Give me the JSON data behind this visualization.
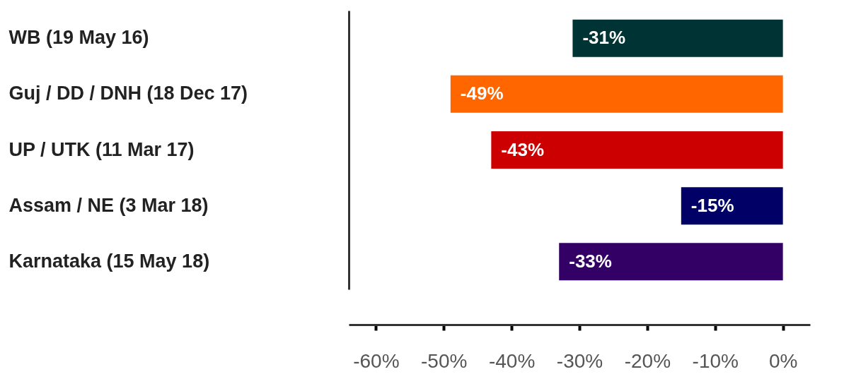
{
  "chart_data": {
    "type": "bar",
    "orientation": "horizontal",
    "categories": [
      "WB (19 May 16)",
      "Guj / DD / DNH (18 Dec 17)",
      "UP / UTK (11 Mar 17)",
      "Assam / NE (3 Mar 18)",
      "Karnataka (15 May 18)"
    ],
    "values": [
      -31,
      -49,
      -43,
      -15,
      -33
    ],
    "colors": [
      "#003333",
      "#ff6600",
      "#cc0000",
      "#000066",
      "#330066"
    ],
    "value_labels": [
      "-31%",
      "-49%",
      "-43%",
      "-15%",
      "-33%"
    ],
    "xlim": [
      -64,
      4
    ],
    "xticks": [
      {
        "value": -60,
        "label": "-60%"
      },
      {
        "value": -50,
        "label": "-50%"
      },
      {
        "value": -40,
        "label": "-40%"
      },
      {
        "value": -30,
        "label": "-30%"
      },
      {
        "value": -20,
        "label": "-20%"
      },
      {
        "value": -10,
        "label": "-10%"
      },
      {
        "value": 0,
        "label": "0%"
      }
    ],
    "grid": false
  }
}
